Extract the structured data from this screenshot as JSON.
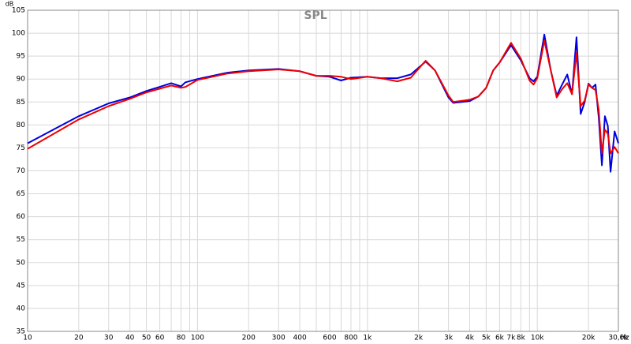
{
  "chart_data": {
    "type": "line",
    "title": "SPL",
    "y_unit": "dB",
    "x_unit": "Hz",
    "log_x": true,
    "grid": true,
    "xlim": [
      10,
      30000
    ],
    "ylim": [
      35,
      105
    ],
    "xticks": [
      10,
      20,
      30,
      40,
      50,
      60,
      80,
      100,
      200,
      300,
      400,
      600,
      800,
      {
        "value": 1000,
        "label": "1k"
      },
      {
        "value": 2000,
        "label": "2k"
      },
      {
        "value": 3000,
        "label": "3k"
      },
      {
        "value": 4000,
        "label": "4k"
      },
      {
        "value": 5000,
        "label": "5k"
      },
      {
        "value": 6000,
        "label": "6k"
      },
      {
        "value": 7000,
        "label": "7k"
      },
      {
        "value": 8000,
        "label": "8k"
      },
      {
        "value": 10000,
        "label": "10k"
      },
      {
        "value": 20000,
        "label": "20k"
      },
      {
        "value": 30000,
        "label": "30,0k"
      }
    ],
    "x_minor_ticks": [
      70,
      90,
      500,
      700,
      900,
      9000
    ],
    "yticks": [
      35,
      40,
      45,
      50,
      55,
      60,
      65,
      70,
      75,
      80,
      85,
      90,
      95,
      100,
      105
    ],
    "x": [
      10,
      20,
      30,
      40,
      50,
      60,
      70,
      80,
      85,
      100,
      150,
      200,
      300,
      400,
      500,
      600,
      700,
      800,
      1000,
      1200,
      1500,
      1800,
      2200,
      2500,
      3000,
      3200,
      4000,
      4500,
      5000,
      5500,
      6000,
      7000,
      8000,
      9000,
      9500,
      10000,
      11000,
      12000,
      13000,
      14000,
      15000,
      16000,
      17000,
      18000,
      19000,
      20000,
      21000,
      22000,
      23000,
      24000,
      25000,
      26000,
      27000,
      28500,
      30000
    ],
    "series": [
      {
        "color": "#0000dd",
        "values": [
          76.0,
          81.9,
          84.7,
          86.0,
          87.4,
          88.3,
          89.1,
          88.4,
          89.3,
          90.0,
          91.4,
          91.9,
          92.2,
          91.7,
          90.7,
          90.5,
          89.7,
          90.3,
          90.5,
          90.2,
          90.2,
          91.0,
          93.8,
          91.9,
          86.0,
          84.8,
          85.2,
          86.2,
          88.1,
          91.9,
          93.6,
          97.4,
          94.1,
          90.2,
          89.5,
          90.5,
          99.7,
          91.9,
          86.4,
          88.8,
          91.0,
          86.7,
          99.1,
          82.4,
          85.0,
          89.0,
          88.1,
          88.8,
          81.6,
          71.2,
          81.9,
          79.8,
          69.8,
          78.6,
          76.0
        ]
      },
      {
        "color": "#ee0000",
        "values": [
          74.8,
          81.2,
          84.1,
          85.7,
          87.1,
          87.9,
          88.6,
          88.1,
          88.3,
          89.8,
          91.2,
          91.7,
          92.1,
          91.7,
          90.7,
          90.7,
          90.5,
          90.0,
          90.5,
          90.2,
          89.5,
          90.3,
          94.0,
          91.9,
          86.4,
          85.0,
          85.5,
          86.2,
          88.1,
          91.9,
          93.6,
          97.9,
          94.5,
          89.7,
          88.8,
          90.2,
          98.4,
          91.9,
          86.0,
          87.8,
          89.1,
          86.7,
          95.7,
          84.1,
          85.3,
          88.8,
          88.1,
          87.6,
          83.3,
          73.8,
          79.0,
          78.1,
          73.8,
          75.2,
          73.8
        ]
      }
    ]
  }
}
